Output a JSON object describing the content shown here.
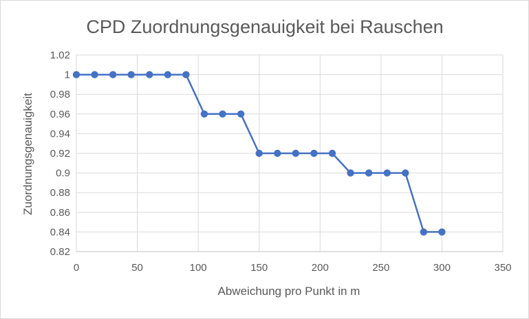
{
  "chart_data": {
    "type": "line",
    "title": "CPD Zuordnungsgenauigkeit bei Rauschen",
    "xlabel": "Abweichung pro Punkt in m",
    "ylabel": "Zuordnungsgenauigkeit",
    "xlim": [
      0,
      350
    ],
    "ylim": [
      0.82,
      1.02
    ],
    "x_ticks": [
      "0",
      "50",
      "100",
      "150",
      "200",
      "250",
      "300",
      "350"
    ],
    "y_ticks": [
      "0.82",
      "0.84",
      "0.86",
      "0.88",
      "0.9",
      "0.92",
      "0.94",
      "0.96",
      "0.98",
      "1",
      "1.02"
    ],
    "grid": true,
    "color": "#4472c4",
    "series": [
      {
        "x": [
          0,
          15,
          30,
          45,
          60,
          75,
          90,
          105,
          120,
          135,
          150,
          165,
          180,
          195,
          210,
          225,
          240,
          255,
          270,
          285,
          300
        ],
        "y": [
          1,
          1,
          1,
          1,
          1,
          1,
          1,
          0.96,
          0.96,
          0.96,
          0.92,
          0.92,
          0.92,
          0.92,
          0.92,
          0.9,
          0.9,
          0.9,
          0.9,
          0.84,
          0.84
        ]
      }
    ]
  }
}
